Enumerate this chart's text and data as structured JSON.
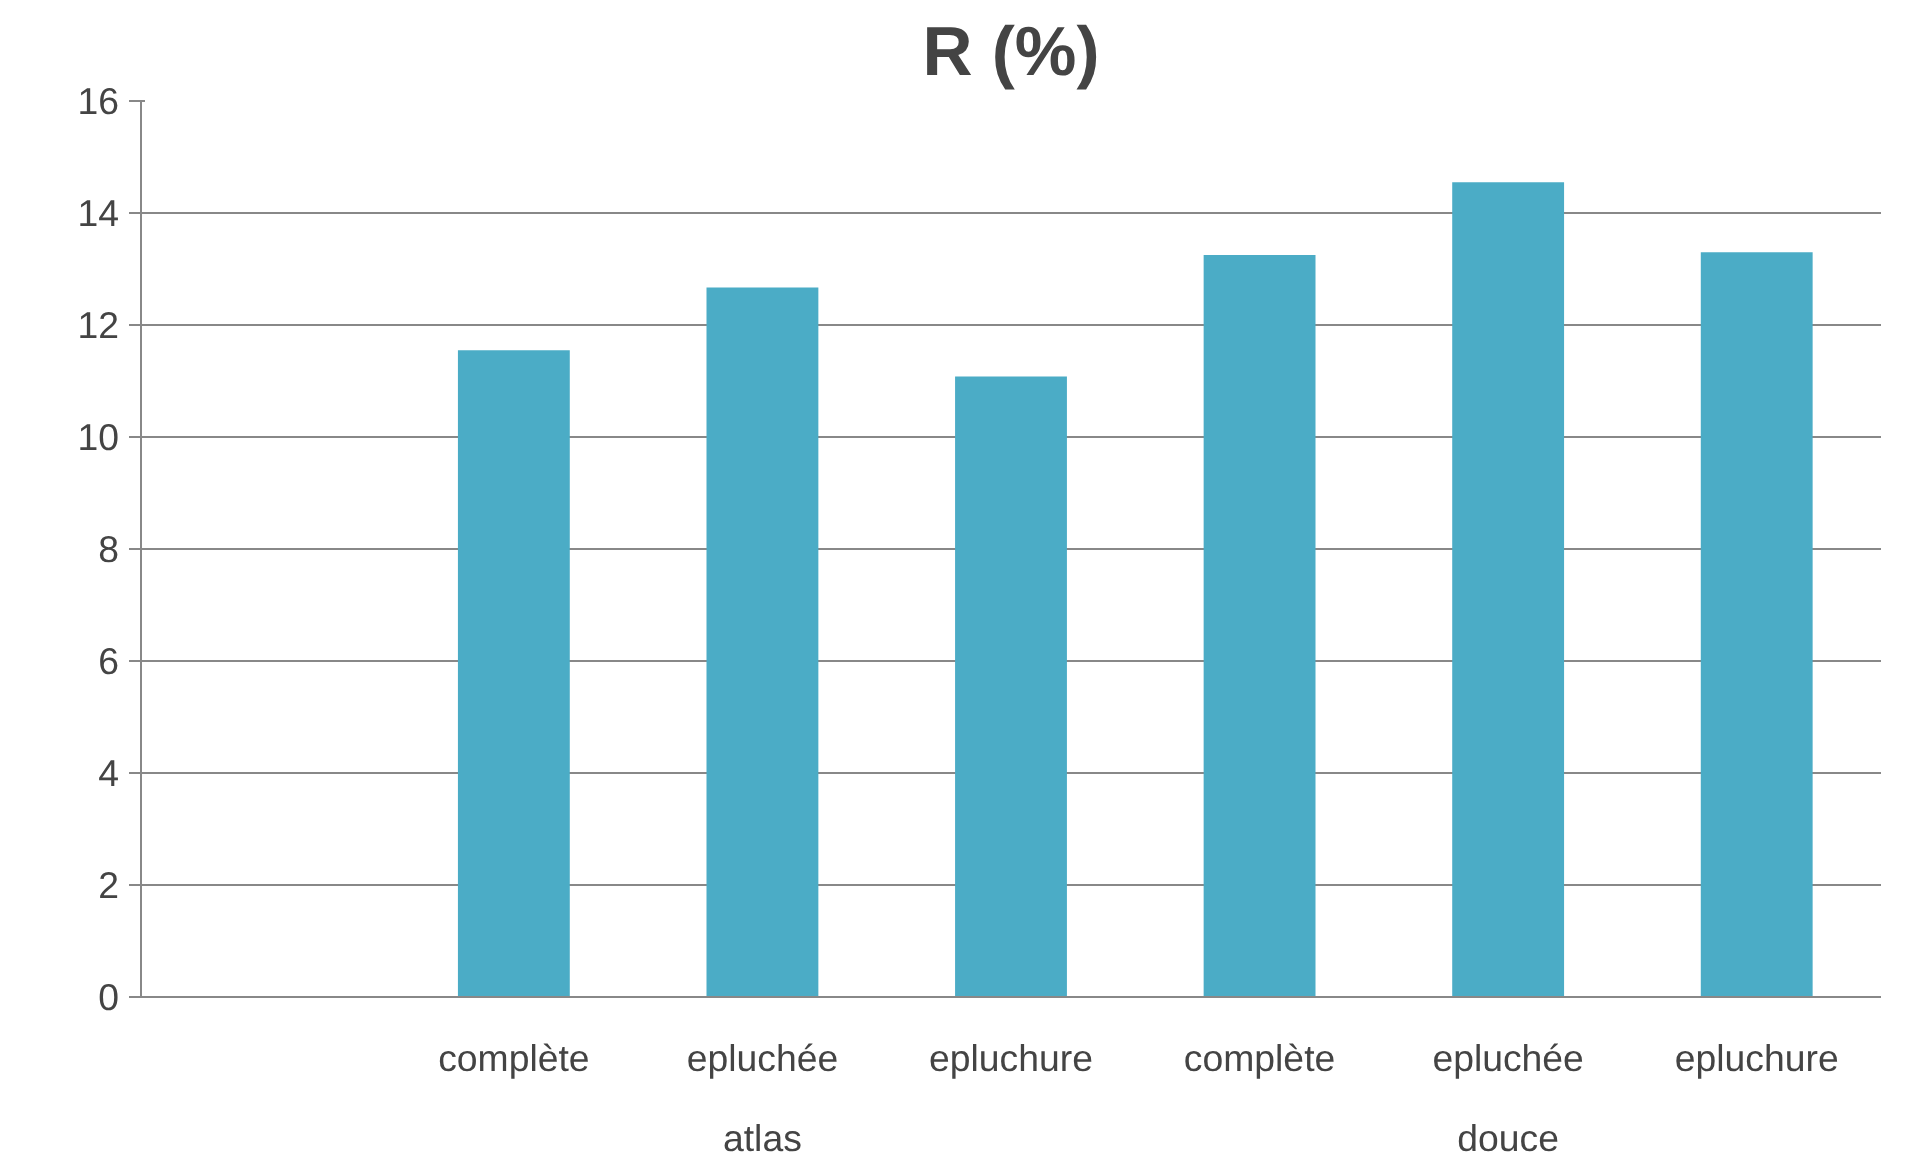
{
  "chart_data": {
    "type": "bar",
    "title": "R (%)",
    "categories": [
      null,
      "complète",
      "epluchée",
      "epluchure",
      "complète",
      "epluchée",
      "epluchure"
    ],
    "values": [
      null,
      11.55,
      12.67,
      11.08,
      13.25,
      14.55,
      13.3
    ],
    "color": "#4bacc6",
    "ylim": [
      0,
      16
    ],
    "yticks": [
      0,
      2,
      4,
      6,
      8,
      10,
      12,
      14,
      16
    ],
    "grid": "y",
    "annotations": [
      "atlas",
      "douce"
    ]
  }
}
